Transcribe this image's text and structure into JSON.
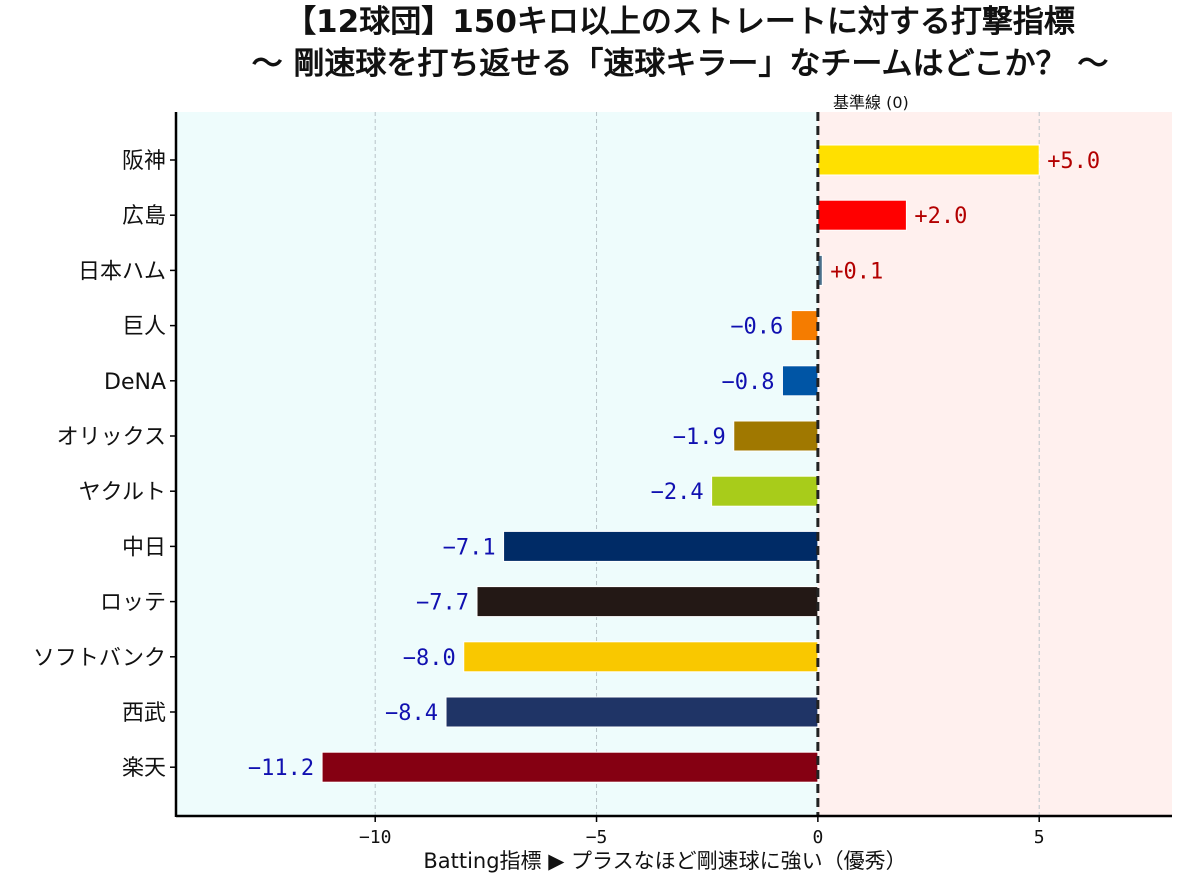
{
  "chart_data": {
    "type": "bar",
    "orientation": "horizontal",
    "title": "【12球団】150キロ以上のストレートに対する打撃指標",
    "subtitle": "～ 剛速球を打ち返せる「速球キラー」なチームはどこか？ ～",
    "xlabel": "Batting指標 ▶ プラスなほど剛速球に強い（優秀）",
    "ylabel": "",
    "xlim": [
      -14.5,
      8
    ],
    "xticks": [
      -10,
      -5,
      0,
      5
    ],
    "xtick_labels": [
      "−10",
      "−5",
      "0",
      "5"
    ],
    "grid": "x-dashed",
    "reference_line": {
      "value": 0,
      "label": "基準線 (0)"
    },
    "background_regions": [
      {
        "range": "negative",
        "color": "#eefcfc"
      },
      {
        "range": "positive",
        "color": "#fff0ee"
      }
    ],
    "categories": [
      "阪神",
      "広島",
      "日本ハム",
      "巨人",
      "DeNA",
      "オリックス",
      "ヤクルト",
      "中日",
      "ロッテ",
      "ソフトバンク",
      "西武",
      "楽天"
    ],
    "values": [
      5.0,
      2.0,
      0.1,
      -0.6,
      -0.8,
      -1.9,
      -2.4,
      -7.1,
      -7.7,
      -8.0,
      -8.4,
      -11.2
    ],
    "data_labels": [
      "+5.0",
      "+2.0",
      "+0.1",
      "−0.6",
      "−0.8",
      "−1.9",
      "−2.4",
      "−7.1",
      "−7.7",
      "−8.0",
      "−8.4",
      "−11.2"
    ],
    "bar_colors": [
      "#ffe000",
      "#ff0000",
      "#4a6f8a",
      "#f57c00",
      "#0055a5",
      "#a07800",
      "#a8cc1a",
      "#002b66",
      "#231815",
      "#f9c800",
      "#1f3466",
      "#850012"
    ],
    "label_colors": {
      "positive": "#b30000",
      "negative": "#1010b0"
    }
  }
}
